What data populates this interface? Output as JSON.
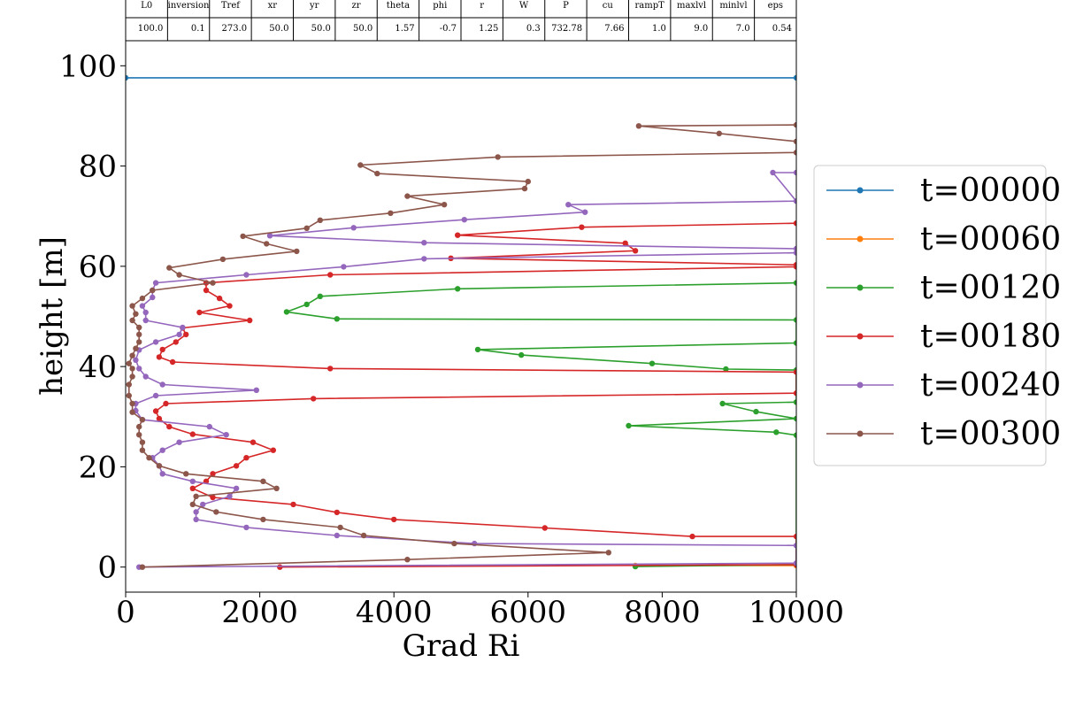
{
  "parameter_table": {
    "headers": [
      "L0",
      "inversion",
      "Tref",
      "xr",
      "yr",
      "zr",
      "theta",
      "phi",
      "r",
      "W",
      "P",
      "cu",
      "rampT",
      "maxlvl",
      "minlvl",
      "eps"
    ],
    "values": [
      "100.0",
      "0.1",
      "273.0",
      "50.0",
      "50.0",
      "50.0",
      "1.57",
      "-0.7",
      "1.25",
      "0.3",
      "732.78",
      "7.66",
      "1.0",
      "9.0",
      "7.0",
      "0.54"
    ]
  },
  "chart_data": {
    "type": "line",
    "xlabel": "Grad Ri",
    "ylabel": "height [m]",
    "xlim": [
      0,
      10000
    ],
    "ylim": [
      -5,
      105
    ],
    "xticks": [
      "0",
      "2000",
      "4000",
      "6000",
      "8000",
      "10000"
    ],
    "yticks": [
      "0",
      "20",
      "40",
      "60",
      "80",
      "100"
    ],
    "grid": false,
    "legend_position": "right, outside plot",
    "series": [
      {
        "name": "t=00000",
        "color": "#1f77b4",
        "points": [
          [
            0,
            97.6
          ],
          [
            10000,
            97.6
          ]
        ]
      },
      {
        "name": "t=00060",
        "color": "#ff7f0e",
        "points": [
          [
            7600,
            0.3
          ],
          [
            10000,
            0.3
          ]
        ]
      },
      {
        "name": "t=00120",
        "color": "#2ca02c",
        "points": [
          [
            7600,
            0.1
          ],
          [
            10000,
            0.5
          ],
          [
            10000,
            26.3
          ],
          [
            9700,
            26.9
          ],
          [
            7500,
            28.2
          ],
          [
            10000,
            29.6
          ],
          [
            9400,
            31.0
          ],
          [
            8900,
            32.6
          ],
          [
            10000,
            32.9
          ],
          [
            10000,
            39.3
          ],
          [
            8950,
            39.5
          ],
          [
            7850,
            40.6
          ],
          [
            5900,
            42.3
          ],
          [
            5250,
            43.4
          ],
          [
            10000,
            44.7
          ],
          [
            10000,
            49.3
          ],
          [
            3150,
            49.5
          ],
          [
            2400,
            50.9
          ],
          [
            2700,
            52.4
          ],
          [
            2900,
            54.0
          ],
          [
            4950,
            55.5
          ],
          [
            10000,
            56.7
          ]
        ]
      },
      {
        "name": "t=00180",
        "color": "#d62728",
        "points": [
          [
            2300,
            0.0
          ],
          [
            10000,
            0.5
          ],
          [
            10000,
            6.1
          ],
          [
            8450,
            6.1
          ],
          [
            6250,
            7.8
          ],
          [
            4000,
            9.5
          ],
          [
            3150,
            10.9
          ],
          [
            2500,
            12.5
          ],
          [
            1300,
            13.9
          ],
          [
            1000,
            15.7
          ],
          [
            1200,
            17.1
          ],
          [
            1300,
            18.6
          ],
          [
            1650,
            20.2
          ],
          [
            1800,
            21.8
          ],
          [
            2200,
            23.3
          ],
          [
            1900,
            24.9
          ],
          [
            1000,
            26.5
          ],
          [
            650,
            28.0
          ],
          [
            500,
            29.6
          ],
          [
            450,
            31.1
          ],
          [
            600,
            32.6
          ],
          [
            2800,
            33.6
          ],
          [
            10000,
            34.7
          ],
          [
            10000,
            38.9
          ],
          [
            3050,
            39.6
          ],
          [
            700,
            40.9
          ],
          [
            500,
            41.9
          ],
          [
            550,
            43.4
          ],
          [
            750,
            44.9
          ],
          [
            900,
            46.4
          ],
          [
            850,
            47.7
          ],
          [
            1850,
            49.2
          ],
          [
            1100,
            50.8
          ],
          [
            1550,
            52.1
          ],
          [
            1400,
            53.6
          ],
          [
            1200,
            55.2
          ],
          [
            1200,
            56.7
          ],
          [
            3050,
            58.3
          ],
          [
            10000,
            59.9
          ],
          [
            10000,
            60.3
          ],
          [
            4850,
            61.6
          ],
          [
            7600,
            63.1
          ],
          [
            7450,
            64.6
          ],
          [
            4950,
            66.2
          ],
          [
            6800,
            67.8
          ],
          [
            10000,
            68.6
          ]
        ]
      },
      {
        "name": "t=00240",
        "color": "#9467bd",
        "points": [
          [
            200,
            0.0
          ],
          [
            10000,
            0.8
          ],
          [
            10000,
            4.3
          ],
          [
            5200,
            4.7
          ],
          [
            3150,
            6.3
          ],
          [
            1800,
            7.9
          ],
          [
            1050,
            9.5
          ],
          [
            1050,
            11.0
          ],
          [
            1150,
            12.5
          ],
          [
            1550,
            14.1
          ],
          [
            1650,
            15.7
          ],
          [
            1000,
            17.1
          ],
          [
            550,
            18.6
          ],
          [
            500,
            20.2
          ],
          [
            400,
            21.8
          ],
          [
            550,
            23.3
          ],
          [
            800,
            24.9
          ],
          [
            1500,
            26.4
          ],
          [
            1250,
            28.0
          ],
          [
            250,
            29.4
          ],
          [
            150,
            31.2
          ],
          [
            150,
            32.6
          ],
          [
            450,
            34.2
          ],
          [
            1950,
            35.3
          ],
          [
            550,
            36.4
          ],
          [
            300,
            38.0
          ],
          [
            200,
            39.6
          ],
          [
            150,
            41.3
          ],
          [
            200,
            43.3
          ],
          [
            450,
            44.9
          ],
          [
            800,
            46.4
          ],
          [
            850,
            47.8
          ],
          [
            300,
            49.2
          ],
          [
            300,
            50.8
          ],
          [
            250,
            52.1
          ],
          [
            400,
            53.8
          ],
          [
            400,
            55.2
          ],
          [
            450,
            56.7
          ],
          [
            1800,
            58.3
          ],
          [
            3250,
            59.9
          ],
          [
            4450,
            61.5
          ],
          [
            10000,
            62.7
          ],
          [
            10000,
            63.5
          ],
          [
            4450,
            64.7
          ],
          [
            2150,
            66.1
          ],
          [
            3400,
            67.7
          ],
          [
            5050,
            69.3
          ],
          [
            6850,
            70.8
          ],
          [
            6600,
            72.3
          ],
          [
            10000,
            73.0
          ],
          [
            9650,
            78.7
          ],
          [
            10000,
            78.7
          ]
        ]
      },
      {
        "name": "t=00300",
        "color": "#8c564b",
        "points": [
          [
            250,
            0.0
          ],
          [
            4200,
            1.5
          ],
          [
            7200,
            2.9
          ],
          [
            4900,
            4.7
          ],
          [
            3550,
            6.3
          ],
          [
            3200,
            7.9
          ],
          [
            2050,
            9.5
          ],
          [
            1350,
            11.0
          ],
          [
            1000,
            12.5
          ],
          [
            1050,
            14.1
          ],
          [
            2250,
            15.7
          ],
          [
            2050,
            17.1
          ],
          [
            900,
            18.6
          ],
          [
            500,
            20.2
          ],
          [
            350,
            21.8
          ],
          [
            250,
            23.3
          ],
          [
            250,
            24.9
          ],
          [
            200,
            26.4
          ],
          [
            200,
            28.0
          ],
          [
            250,
            29.4
          ],
          [
            100,
            30.9
          ],
          [
            100,
            32.6
          ],
          [
            50,
            34.2
          ],
          [
            50,
            36.4
          ],
          [
            100,
            38.0
          ],
          [
            100,
            39.6
          ],
          [
            50,
            40.6
          ],
          [
            100,
            42.2
          ],
          [
            150,
            43.6
          ],
          [
            200,
            44.9
          ],
          [
            200,
            46.4
          ],
          [
            200,
            47.8
          ],
          [
            100,
            49.2
          ],
          [
            150,
            50.5
          ],
          [
            100,
            52.1
          ],
          [
            250,
            53.6
          ],
          [
            400,
            55.2
          ],
          [
            1300,
            56.7
          ],
          [
            800,
            58.3
          ],
          [
            650,
            59.7
          ],
          [
            1450,
            61.4
          ],
          [
            2550,
            63.0
          ],
          [
            2100,
            64.5
          ],
          [
            1750,
            66.0
          ],
          [
            2700,
            67.6
          ],
          [
            2900,
            69.2
          ],
          [
            3950,
            70.6
          ],
          [
            4750,
            72.3
          ],
          [
            4200,
            74.0
          ],
          [
            5950,
            75.5
          ],
          [
            6000,
            76.9
          ],
          [
            3750,
            78.5
          ],
          [
            3500,
            80.2
          ],
          [
            5550,
            81.8
          ],
          [
            10000,
            82.7
          ],
          [
            10000,
            84.9
          ],
          [
            8850,
            86.5
          ],
          [
            7650,
            88.0
          ],
          [
            10000,
            88.2
          ]
        ]
      }
    ]
  }
}
